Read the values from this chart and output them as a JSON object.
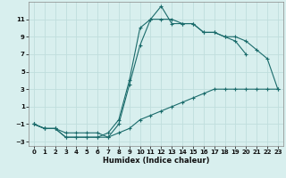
{
  "xlabel": "Humidex (Indice chaleur)",
  "background_color": "#d8efee",
  "grid_color": "#c0dedd",
  "line_color": "#1a6b6b",
  "xlim": [
    -0.5,
    23.5
  ],
  "ylim": [
    -3.5,
    13.0
  ],
  "xticks": [
    0,
    1,
    2,
    3,
    4,
    5,
    6,
    7,
    8,
    9,
    10,
    11,
    12,
    13,
    14,
    15,
    16,
    17,
    18,
    19,
    20,
    21,
    22,
    23
  ],
  "yticks": [
    -3,
    -1,
    1,
    3,
    5,
    7,
    9,
    11
  ],
  "line1_x": [
    0,
    1,
    2,
    3,
    4,
    5,
    6,
    7,
    8,
    9,
    10,
    11,
    12,
    13,
    14,
    15,
    16,
    17,
    18,
    19,
    20,
    21,
    22,
    23
  ],
  "line1_y": [
    -1.0,
    -1.5,
    -1.5,
    -2.5,
    -2.5,
    -2.5,
    -2.5,
    -2.5,
    -2.0,
    -1.5,
    -0.5,
    0.0,
    0.5,
    1.0,
    1.5,
    2.0,
    2.5,
    3.0,
    3.0,
    3.0,
    3.0,
    3.0,
    3.0,
    3.0
  ],
  "line2_x": [
    0,
    1,
    2,
    3,
    4,
    5,
    6,
    7,
    8,
    9,
    10,
    11,
    12,
    13,
    14,
    15,
    16,
    17,
    18,
    19,
    20,
    21,
    22,
    23
  ],
  "line2_y": [
    -1.0,
    -1.5,
    -1.5,
    -2.5,
    -2.5,
    -2.5,
    -2.5,
    -2.0,
    -0.5,
    4.0,
    10.0,
    11.0,
    12.5,
    10.5,
    10.5,
    10.5,
    9.5,
    9.5,
    9.0,
    9.0,
    8.5,
    7.5,
    6.5,
    3.0
  ],
  "line3_x": [
    0,
    1,
    2,
    3,
    4,
    5,
    6,
    7,
    8,
    9,
    10,
    11,
    12,
    13,
    14,
    15,
    16,
    17,
    18,
    19,
    20
  ],
  "line3_y": [
    -1.0,
    -1.5,
    -1.5,
    -2.0,
    -2.0,
    -2.0,
    -2.0,
    -2.5,
    -1.0,
    3.5,
    8.0,
    11.0,
    11.0,
    11.0,
    10.5,
    10.5,
    9.5,
    9.5,
    9.0,
    8.5,
    7.0
  ],
  "figsize": [
    3.2,
    2.0
  ],
  "dpi": 100
}
